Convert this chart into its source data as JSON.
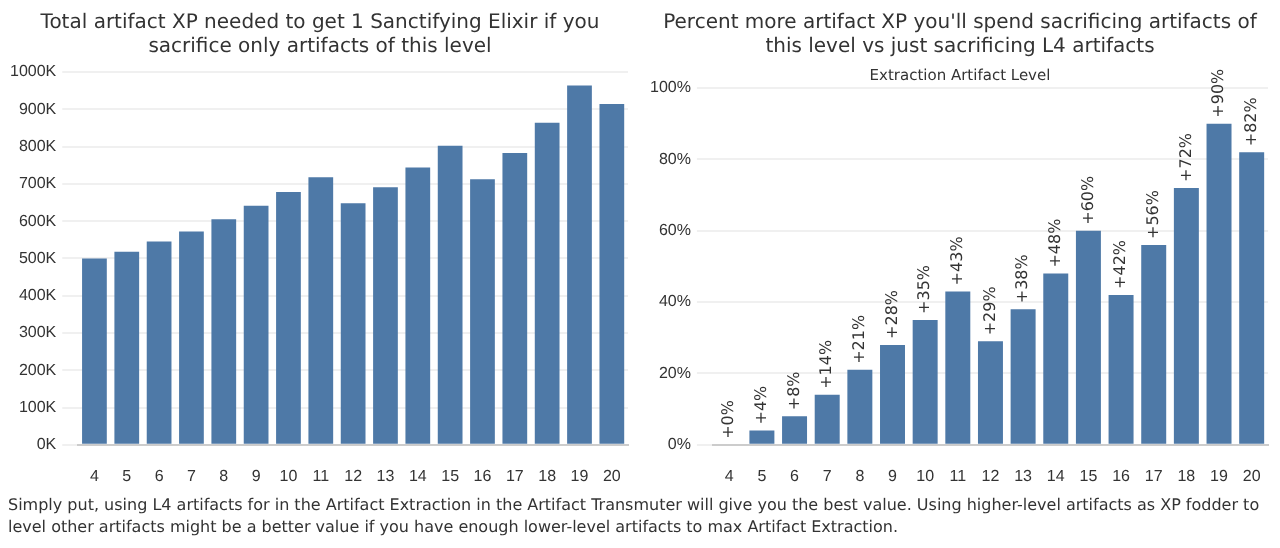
{
  "chart_data": [
    {
      "type": "bar",
      "title": "Total artifact XP needed to get 1 Sanctifying Elixir if you sacrifice only artifacts of this level",
      "categories": [
        "4",
        "5",
        "6",
        "7",
        "8",
        "9",
        "10",
        "11",
        "12",
        "13",
        "14",
        "15",
        "16",
        "17",
        "18",
        "19",
        "20"
      ],
      "values": [
        500000,
        518000,
        545000,
        572000,
        605000,
        641000,
        678000,
        718000,
        648000,
        691000,
        744000,
        802000,
        712000,
        783000,
        864000,
        964000,
        914000
      ],
      "color": "#4e79a7",
      "ylim": [
        0,
        1000000
      ],
      "yticks": [
        {
          "value": 0,
          "label": "0K"
        },
        {
          "value": 100000,
          "label": "100K"
        },
        {
          "value": 200000,
          "label": "200K"
        },
        {
          "value": 300000,
          "label": "300K"
        },
        {
          "value": 400000,
          "label": "400K"
        },
        {
          "value": 500000,
          "label": "500K"
        },
        {
          "value": 600000,
          "label": "600K"
        },
        {
          "value": 700000,
          "label": "700K"
        },
        {
          "value": 800000,
          "label": "800K"
        },
        {
          "value": 900000,
          "label": "900K"
        },
        {
          "value": 1000000,
          "label": "1000K"
        }
      ],
      "grid": "y",
      "annotations": [
        "Simply put, using L4 artifacts for in the Artifact Extraction in the Artifact Transmuter will give you the best value. Using higher-level artifacts as XP fodder to level other artifacts might be a better value if you have enough lower-level artifacts to max Artifact Extraction."
      ]
    },
    {
      "type": "bar",
      "title": "Percent more artifact XP you'll spend sacrificing artifacts of this level vs just sacrificing L4 artifacts",
      "xlabel": "Extraction Artifact Level",
      "categories": [
        "4",
        "5",
        "6",
        "7",
        "8",
        "9",
        "10",
        "11",
        "12",
        "13",
        "14",
        "15",
        "16",
        "17",
        "18",
        "19",
        "20"
      ],
      "values": [
        0,
        4,
        8,
        14,
        21,
        28,
        35,
        43,
        29,
        38,
        48,
        60,
        42,
        56,
        72,
        90,
        82
      ],
      "color": "#4e79a7",
      "value_labels": [
        "+0%",
        "+4%",
        "+8%",
        "+14%",
        "+21%",
        "+28%",
        "+35%",
        "+43%",
        "+29%",
        "+38%",
        "+48%",
        "+60%",
        "+42%",
        "+56%",
        "+72%",
        "+90%",
        "+82%"
      ],
      "ylim": [
        0,
        100
      ],
      "yticks": [
        {
          "value": 0,
          "label": "0%"
        },
        {
          "value": 20,
          "label": "20%"
        },
        {
          "value": 40,
          "label": "40%"
        },
        {
          "value": 60,
          "label": "60%"
        },
        {
          "value": 80,
          "label": "80%"
        },
        {
          "value": 100,
          "label": "100%"
        }
      ],
      "grid": "y"
    }
  ]
}
